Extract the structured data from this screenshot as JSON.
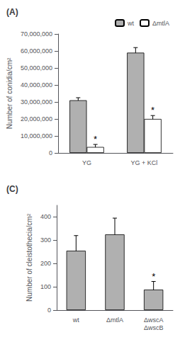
{
  "chart_data": [
    {
      "type": "bar",
      "title": "(A)",
      "categories": [
        "YG",
        "YG + KCl"
      ],
      "series": [
        {
          "name": "wt",
          "color": "#b0b0b0",
          "values": [
            31000000,
            59000000
          ],
          "errors": [
            1500000,
            3000000
          ]
        },
        {
          "name": "ΔmtlA",
          "color": "#ffffff",
          "values": [
            3500000,
            20000000
          ],
          "errors": [
            1500000,
            2000000
          ]
        }
      ],
      "ylabel": "Number of conidia/cm²",
      "ylim": [
        0,
        70000000
      ],
      "yticks": [
        0,
        {
          "value": 10000000,
          "label": "10,000,000"
        },
        {
          "value": 20000000,
          "label": "20,000,000"
        },
        {
          "value": 30000000,
          "label": "30,000,000"
        },
        {
          "value": 40000000,
          "label": "40,000,000"
        },
        {
          "value": 50000000,
          "label": "50,000,000"
        },
        {
          "value": 60000000,
          "label": "60,000,000"
        },
        {
          "value": 70000000,
          "label": "70,000,000"
        }
      ],
      "legend": "upper right",
      "grid": false,
      "annotations": [
        {
          "text": "*",
          "series": "ΔmtlA",
          "category": "YG"
        },
        {
          "text": "*",
          "series": "ΔmtlA",
          "category": "YG + KCl"
        }
      ]
    },
    {
      "type": "bar",
      "title": "(C)",
      "categories": [
        "wt",
        "ΔmtlA",
        "ΔwscA\nΔwscB"
      ],
      "values": [
        255,
        325,
        88
      ],
      "errors": [
        65,
        70,
        35
      ],
      "color": "#b0b0b0",
      "ylabel": "Number of cleistothecia/cm²",
      "ylim": [
        0,
        450
      ],
      "yticks": [
        0,
        100,
        200,
        300,
        400
      ],
      "grid": false,
      "annotations": [
        {
          "text": "*",
          "category": "ΔwscA\nΔwscB"
        }
      ]
    }
  ]
}
